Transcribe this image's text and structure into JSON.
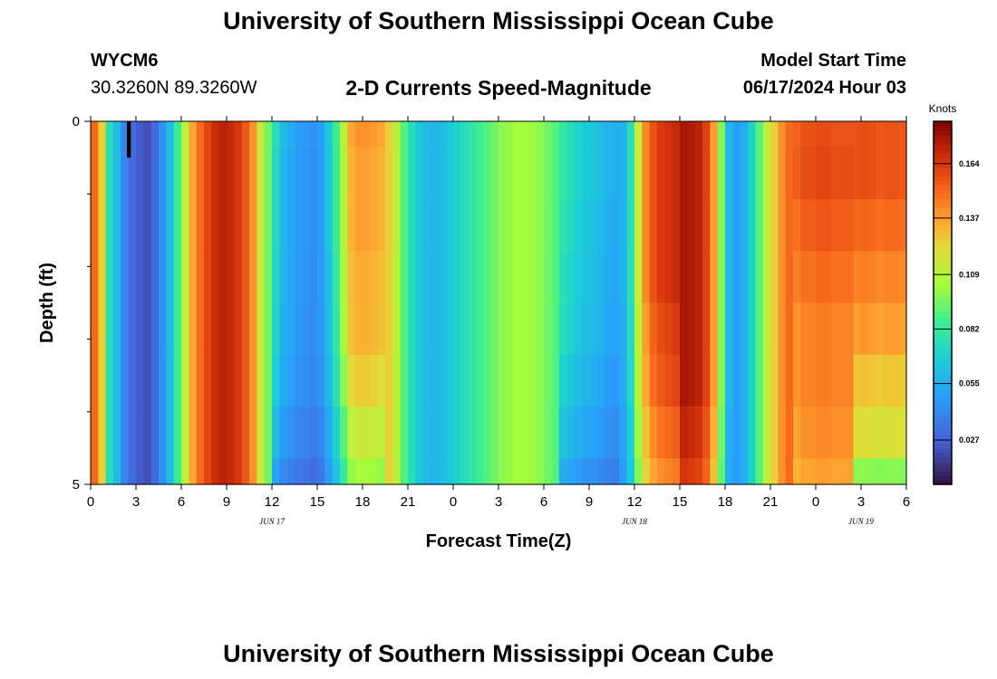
{
  "header": {
    "title_top": "University of Southern Mississippi Ocean Cube",
    "title_bottom": "University of Southern Mississippi Ocean Cube",
    "station": "WYCM6",
    "coords": "30.3260N  89.3260W",
    "model_start_label": "Model Start Time",
    "model_start_value": "06/17/2024 Hour 03"
  },
  "colors": {
    "background": "#ffffff",
    "axis": "#000000"
  },
  "chart_data": {
    "type": "heatmap",
    "title": "2-D Currents Speed-Magnitude",
    "xlabel": "Forecast Time(Z)",
    "ylabel": "Depth (ft)",
    "x_ticks": [
      "0",
      "3",
      "6",
      "9",
      "12",
      "15",
      "18",
      "21",
      "0",
      "3",
      "6",
      "9",
      "12",
      "15",
      "18",
      "21",
      "0",
      "3",
      "6"
    ],
    "date_labels": [
      "JUN 17",
      "JUN 18",
      "JUN 19"
    ],
    "date_label_hours": [
      12,
      36,
      51
    ],
    "x_range_hours": [
      0,
      54
    ],
    "y_range": [
      0,
      5
    ],
    "y_tick_labels": [
      "0",
      "5"
    ],
    "colorbar": {
      "label": "Knots",
      "min": 0.005,
      "max": 0.185,
      "ticks": [
        0.027,
        0.055,
        0.082,
        0.109,
        0.137,
        0.164
      ],
      "tick_labels": [
        "0.027",
        "0.055",
        "0.082",
        "0.109",
        "0.137",
        "0.164"
      ]
    },
    "bad_cell": {
      "hour_start": 2,
      "hour_end": 3,
      "depth_start": 0,
      "depth_end": 0.5
    },
    "depth_factors": [
      [
        1.0,
        1.0,
        1.0,
        1.0,
        1.0,
        1.0,
        1.0,
        1.0,
        0.95,
        0.95,
        0.98,
        1.0,
        0.98,
        0.98
      ],
      [
        1.0,
        1.0,
        1.0,
        0.98,
        0.98,
        1.0,
        1.0,
        1.0,
        0.95,
        0.95,
        0.98,
        1.0,
        0.99,
        0.98
      ],
      [
        1.0,
        1.0,
        1.0,
        0.98,
        0.98,
        1.0,
        1.0,
        1.0,
        0.92,
        0.95,
        0.98,
        1.0,
        0.96,
        0.94
      ],
      [
        1.0,
        1.0,
        1.0,
        0.96,
        0.96,
        1.0,
        1.0,
        1.0,
        0.9,
        0.95,
        0.98,
        1.0,
        0.93,
        0.9
      ],
      [
        1.0,
        1.0,
        1.0,
        0.95,
        0.95,
        1.0,
        1.0,
        1.0,
        0.88,
        0.92,
        0.98,
        1.0,
        0.9,
        0.86
      ],
      [
        1.0,
        1.0,
        1.0,
        0.9,
        0.9,
        1.0,
        1.0,
        1.0,
        0.82,
        0.9,
        0.98,
        1.0,
        0.9,
        0.8
      ],
      [
        1.0,
        1.0,
        1.0,
        0.82,
        0.82,
        1.0,
        1.0,
        1.0,
        0.75,
        0.86,
        0.95,
        1.0,
        0.88,
        0.75
      ],
      [
        1.0,
        1.0,
        1.0,
        0.7,
        0.75,
        1.0,
        1.0,
        1.0,
        0.65,
        0.82,
        0.92,
        1.0,
        0.85,
        0.62
      ]
    ],
    "surface_values": [
      0.15,
      0.125,
      0.075,
      0.06,
      0.04,
      0.03,
      0.025,
      0.022,
      0.03,
      0.045,
      0.06,
      0.085,
      0.11,
      0.135,
      0.15,
      0.16,
      0.168,
      0.172,
      0.17,
      0.165,
      0.155,
      0.14,
      0.115,
      0.095,
      0.075,
      0.06,
      0.055,
      0.05,
      0.048,
      0.045,
      0.05,
      0.065,
      0.085,
      0.11,
      0.135,
      0.14,
      0.14,
      0.138,
      0.135,
      0.125,
      0.11,
      0.09,
      0.075,
      0.065,
      0.06,
      0.058,
      0.06,
      0.065,
      0.07,
      0.075,
      0.08,
      0.085,
      0.09,
      0.095,
      0.1,
      0.102,
      0.104,
      0.104,
      0.103,
      0.1,
      0.095,
      0.09,
      0.085,
      0.08,
      0.075,
      0.07,
      0.068,
      0.065,
      0.06,
      0.058,
      0.06,
      0.08,
      0.12,
      0.15,
      0.165,
      0.172,
      0.175,
      0.178,
      0.18,
      0.178,
      0.175,
      0.165,
      0.14,
      0.1,
      0.06,
      0.05,
      0.055,
      0.07,
      0.09,
      0.11,
      0.125,
      0.14,
      0.15,
      0.155,
      0.16,
      0.16,
      0.162,
      0.162,
      0.16,
      0.16,
      0.16,
      0.16,
      0.162,
      0.16,
      0.158,
      0.16,
      0.16,
      0.158
    ]
  }
}
